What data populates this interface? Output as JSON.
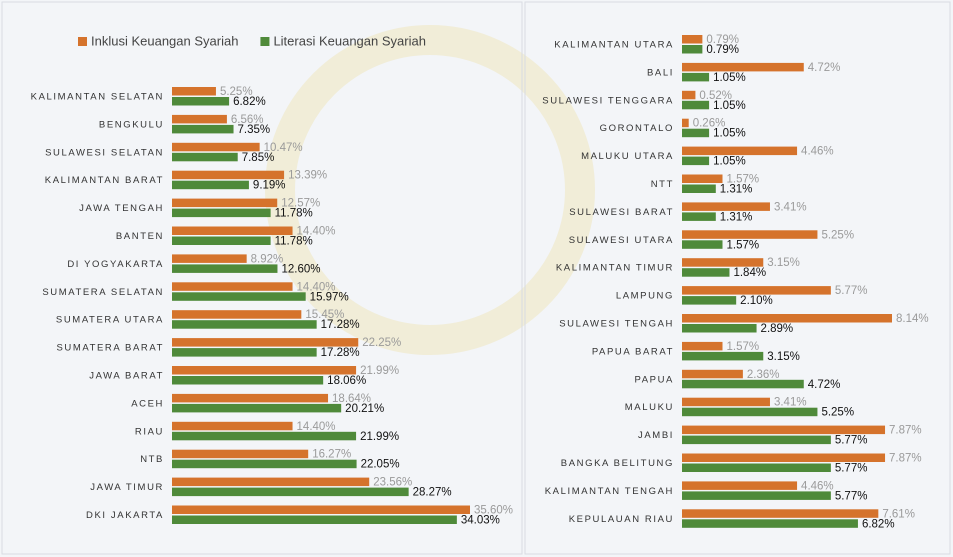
{
  "chart_data": [
    {
      "type": "bar",
      "categories": [
        "KALIMANTAN SELATAN",
        "BENGKULU",
        "SULAWESI SELATAN",
        "KALIMANTAN BARAT",
        "JAWA TENGAH",
        "BANTEN",
        "DI YOGYAKARTA",
        "SUMATERA SELATAN",
        "SUMATERA UTARA",
        "SUMATERA BARAT",
        "JAWA BARAT",
        "ACEH",
        "RIAU",
        "NTB",
        "JAWA TIMUR",
        "DKI JAKARTA"
      ],
      "series": [
        {
          "name": "Inklusi Keuangan Syariah",
          "color": "#d5732c",
          "values": [
            5.25,
            6.56,
            10.47,
            13.39,
            12.57,
            14.4,
            8.92,
            14.4,
            15.45,
            22.25,
            21.99,
            18.64,
            14.4,
            16.27,
            23.56,
            35.6
          ],
          "value_labels": [
            "5.25%",
            "6.56%",
            "10.47%",
            "13.39%",
            "12.57%",
            "14.40%",
            "8.92%",
            "14.40%",
            "15.45%",
            "22.25%",
            "21.99%",
            "18.64%",
            "14.40%",
            "16.27%",
            "23.56%",
            "35.60%"
          ]
        },
        {
          "name": "Literasi Keuangan Syariah",
          "color": "#4f8a3a",
          "values": [
            6.82,
            7.35,
            7.85,
            9.19,
            11.78,
            11.78,
            12.6,
            15.97,
            17.28,
            17.28,
            18.06,
            20.21,
            21.99,
            22.05,
            28.27,
            34.03
          ],
          "value_labels": [
            "6.82%",
            "7.35%",
            "7.85%",
            "9.19%",
            "11.78%",
            "11.78%",
            "12.60%",
            "15.97%",
            "17.28%",
            "17.28%",
            "18.06%",
            "20.21%",
            "21.99%",
            "22.05%",
            "28.27%",
            "34.03%"
          ]
        }
      ]
    },
    {
      "type": "bar",
      "categories": [
        "KALIMANTAN UTARA",
        "BALI",
        "SULAWESI TENGGARA",
        "GORONTALO",
        "MALUKU UTARA",
        "NTT",
        "SULAWESI BARAT",
        "SULAWESI UTARA",
        "KALIMANTAN TIMUR",
        "LAMPUNG",
        "SULAWESI TENGAH",
        "PAPUA BARAT",
        "PAPUA",
        "MALUKU",
        "JAMBI",
        "BANGKA BELITUNG",
        "KALIMANTAN TENGAH",
        "KEPULAUAN RIAU"
      ],
      "series": [
        {
          "color": "#d5732c",
          "values": [
            0.79,
            4.72,
            0.52,
            0.26,
            4.46,
            1.57,
            3.41,
            5.25,
            3.15,
            5.77,
            8.14,
            1.57,
            2.36,
            3.41,
            7.87,
            7.87,
            4.46,
            7.61
          ],
          "value_labels": [
            "0.79%",
            "4.72%",
            "0.52%",
            "0.26%",
            "4.46%",
            "1.57%",
            "3.41%",
            "5.25%",
            "3.15%",
            "5.77%",
            "8.14%",
            "1.57%",
            "2.36%",
            "3.41%",
            "7.87%",
            "7.87%",
            "4.46%",
            "7.61%"
          ]
        },
        {
          "color": "#4f8a3a",
          "values": [
            0.79,
            1.05,
            1.05,
            1.05,
            1.05,
            1.31,
            1.31,
            1.57,
            1.84,
            2.1,
            2.89,
            3.15,
            4.72,
            5.25,
            5.77,
            5.77,
            5.77,
            6.82
          ],
          "value_labels": [
            "0.79%",
            "1.05%",
            "1.05%",
            "1.05%",
            "1.05%",
            "1.31%",
            "1.31%",
            "1.57%",
            "1.84%",
            "2.10%",
            "2.89%",
            "3.15%",
            "4.72%",
            "5.25%",
            "5.77%",
            "5.77%",
            "5.77%",
            "6.82%"
          ]
        }
      ]
    }
  ]
}
